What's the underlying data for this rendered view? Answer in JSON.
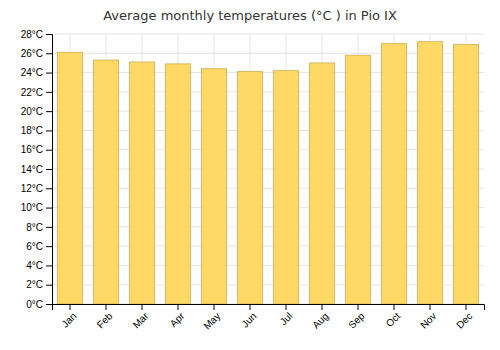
{
  "chart_data": {
    "type": "bar",
    "title": "Average monthly temperatures (°C ) in Pio IX",
    "categories": [
      "Jan",
      "Feb",
      "Mar",
      "Apr",
      "May",
      "Jun",
      "Jul",
      "Aug",
      "Sep",
      "Oct",
      "Nov",
      "Dec"
    ],
    "values": [
      26.1,
      25.3,
      25.1,
      24.9,
      24.4,
      24.1,
      24.2,
      25.0,
      25.8,
      27.0,
      27.2,
      26.9
    ],
    "color": "#FFD966",
    "ylim": [
      0,
      28
    ],
    "yticks": [
      {
        "value": 0,
        "label": "0°C"
      },
      {
        "value": 2,
        "label": "2°C"
      },
      {
        "value": 4,
        "label": "4°C"
      },
      {
        "value": 6,
        "label": "6°C"
      },
      {
        "value": 8,
        "label": "8°C"
      },
      {
        "value": 10,
        "label": "10°C"
      },
      {
        "value": 12,
        "label": "12°C"
      },
      {
        "value": 14,
        "label": "14°C"
      },
      {
        "value": 16,
        "label": "16°C"
      },
      {
        "value": 18,
        "label": "18°C"
      },
      {
        "value": 20,
        "label": "20°C"
      },
      {
        "value": 22,
        "label": "22°C"
      },
      {
        "value": 24,
        "label": "24°C"
      },
      {
        "value": 26,
        "label": "26°C"
      },
      {
        "value": 28,
        "label": "28°C"
      }
    ],
    "grid": true
  }
}
